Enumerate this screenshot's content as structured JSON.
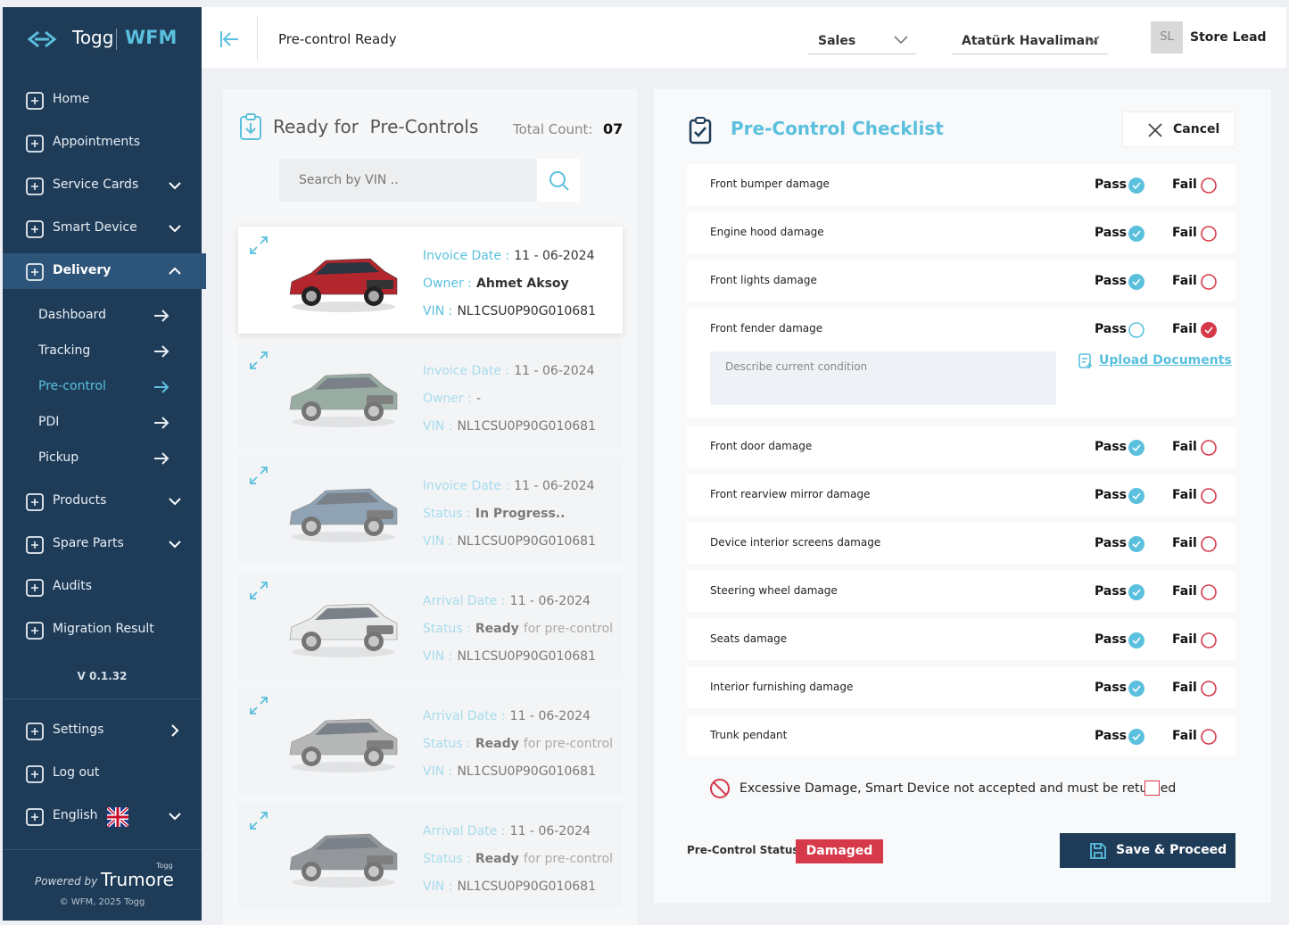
{
  "sidebar": {
    "brand": {
      "logo": "Togg",
      "product": "WFM"
    },
    "menu": [
      {
        "label": "Home",
        "toggle": "none"
      },
      {
        "label": "Appointments",
        "toggle": "none"
      },
      {
        "label": "Service Cards",
        "toggle": "down"
      },
      {
        "label": "Smart Device",
        "toggle": "down"
      },
      {
        "label": "Delivery",
        "toggle": "up",
        "active": true
      }
    ],
    "submenu": [
      {
        "label": "Dashboard"
      },
      {
        "label": "Tracking"
      },
      {
        "label": "Pre-control",
        "active": true
      },
      {
        "label": "PDI"
      },
      {
        "label": "Pickup"
      }
    ],
    "menu_after": [
      {
        "label": "Products",
        "toggle": "down"
      },
      {
        "label": "Spare Parts",
        "toggle": "down"
      },
      {
        "label": "Audits",
        "toggle": "none"
      },
      {
        "label": "Migration Result",
        "toggle": "none"
      }
    ],
    "version": "V 0.1.32",
    "bottom": [
      {
        "label": "Settings",
        "toggle": "right"
      },
      {
        "label": "Log out",
        "toggle": "none"
      },
      {
        "label": "English",
        "toggle": "down"
      }
    ],
    "powered_by": "Powered by",
    "powered_brand_small": "Togg",
    "powered_brand": "Trumore",
    "copyright": "© WFM, 2025 Togg"
  },
  "header": {
    "title": "Pre-control Ready",
    "dropdowns": [
      "Sales",
      "Atatürk Havalimanı"
    ],
    "avatar": "SL",
    "user": "Store Lead"
  },
  "list": {
    "title": "Ready for  Pre-Controls",
    "count_label": "Total Count:",
    "count": "07",
    "search_placeholder": "Search by VIN ..",
    "cards": [
      {
        "color": "#b3262e",
        "active": true,
        "rows": [
          {
            "label": "Invoice Date :",
            "value": "11 - 06-2024"
          },
          {
            "label": "Owner :",
            "value": "Ahmet Aksoy"
          },
          {
            "label": "VIN :",
            "value": "NL1CSU0P90G010681"
          }
        ]
      },
      {
        "color": "#5f7d6a",
        "active": false,
        "rows": [
          {
            "label": "Invoice Date :",
            "value": "11 - 06-2024"
          },
          {
            "label": "Owner :",
            "value": "-"
          },
          {
            "label": "VIN :",
            "value": "NL1CSU0P90G010681"
          }
        ]
      },
      {
        "color": "#4d6f8c",
        "active": false,
        "rows": [
          {
            "label": "Invoice Date :",
            "value": "11 - 06-2024"
          },
          {
            "label": "Status :",
            "value": "In Progress.."
          },
          {
            "label": "VIN :",
            "value": "NL1CSU0P90G010681"
          }
        ]
      },
      {
        "color": "#e2e2e2",
        "active": false,
        "rows": [
          {
            "label": "Arrival Date :",
            "value": "11 - 06-2024"
          },
          {
            "label": "Status :",
            "value": "Ready",
            "suffix": "for pre-control"
          },
          {
            "label": "VIN :",
            "value": "NL1CSU0P90G010681"
          }
        ]
      },
      {
        "color": "#8d8d8d",
        "active": false,
        "rows": [
          {
            "label": "Arrival Date :",
            "value": "11 - 06-2024"
          },
          {
            "label": "Status :",
            "value": "Ready",
            "suffix": "for pre-control"
          },
          {
            "label": "VIN :",
            "value": "NL1CSU0P90G010681"
          }
        ]
      },
      {
        "color": "#555a60",
        "active": false,
        "rows": [
          {
            "label": "Arrival Date :",
            "value": "11 - 06-2024"
          },
          {
            "label": "Status :",
            "value": "Ready",
            "suffix": "for pre-control"
          },
          {
            "label": "VIN :",
            "value": "NL1CSU0P90G010681"
          }
        ]
      }
    ]
  },
  "checklist": {
    "title": "Pre-Control Checklist",
    "cancel": "Cancel",
    "pass_label": "Pass",
    "fail_label": "Fail",
    "items": [
      {
        "label": "Front bumper damage",
        "result": "pass"
      },
      {
        "label": "Engine hood damage",
        "result": "pass"
      },
      {
        "label": "Front lights damage",
        "result": "pass"
      },
      {
        "label": "Front fender damage",
        "result": "fail"
      },
      {
        "label": "Front door damage",
        "result": "pass"
      },
      {
        "label": "Front rearview mirror damage",
        "result": "pass"
      },
      {
        "label": "Device interior screens damage",
        "result": "pass"
      },
      {
        "label": "Steering wheel damage",
        "result": "pass"
      },
      {
        "label": "Seats damage",
        "result": "pass"
      },
      {
        "label": "Interior furnishing damage",
        "result": "pass"
      },
      {
        "label": "Trunk pendant",
        "result": "pass"
      }
    ],
    "condition_placeholder": "Describe current condition",
    "upload": "Upload Documents",
    "excessive": "Excessive Damage, Smart Device not accepted and must be returned",
    "status_label": "Pre-Control Status:",
    "status": "Damaged",
    "save": "Save & Proceed"
  }
}
